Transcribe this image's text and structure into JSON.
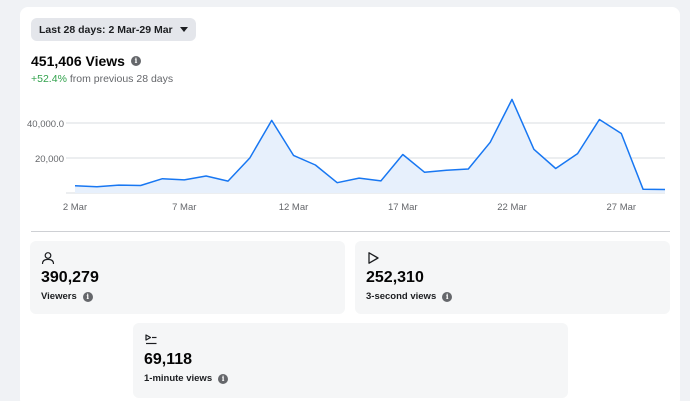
{
  "date_range": {
    "label": "Last 28 days: 2 Mar-29 Mar"
  },
  "summary": {
    "total": "451,406 Views",
    "change_pct": "+52.4%",
    "change_text": "from previous 28 days"
  },
  "chart_data": {
    "type": "area",
    "x_tick_labels": [
      "2 Mar",
      "7 Mar",
      "12 Mar",
      "17 Mar",
      "22 Mar",
      "27 Mar"
    ],
    "y_tick_labels": [
      "40,000.0",
      "20,000"
    ],
    "y_ticks": [
      40000,
      20000
    ],
    "ylim": [
      0,
      50000
    ],
    "days": [
      2,
      3,
      4,
      5,
      6,
      7,
      8,
      9,
      10,
      11,
      12,
      13,
      14,
      15,
      16,
      17,
      18,
      19,
      20,
      21,
      22,
      23,
      24,
      25,
      26,
      27,
      28,
      29
    ],
    "values": [
      4200,
      3600,
      4500,
      4300,
      8200,
      7500,
      9700,
      6800,
      20000,
      41500,
      21500,
      16000,
      5900,
      8500,
      6900,
      22000,
      11800,
      13000,
      13700,
      29000,
      53500,
      25000,
      14000,
      22500,
      42000,
      34000,
      2100,
      2000
    ],
    "grid": true,
    "colors": {
      "line": "#1877f2",
      "fill": "#e7f0fc",
      "grid": "#dadde1"
    }
  },
  "metrics": [
    {
      "icon": "person-icon",
      "value": "390,279",
      "label": "Viewers"
    },
    {
      "icon": "play-icon",
      "value": "252,310",
      "label": "3-second views"
    },
    {
      "icon": "playlist-play-icon",
      "value": "69,118",
      "label": "1-minute views"
    }
  ]
}
